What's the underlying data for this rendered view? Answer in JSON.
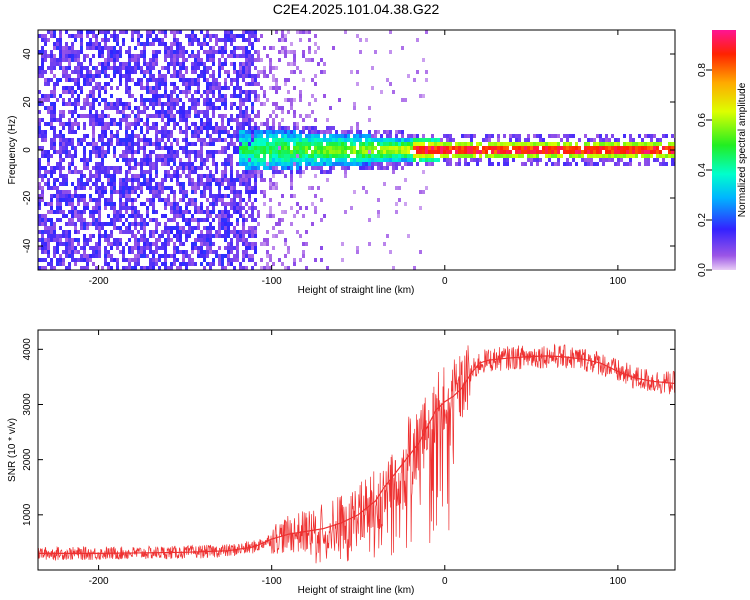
{
  "title": "C2E4.2025.101.04.38.G22",
  "colors": {
    "snr_line": "#ee3030",
    "low": "#8a2be2",
    "background": "#ffffff"
  },
  "chart_data": [
    {
      "type": "heatmap",
      "panel": "top",
      "title": "C2E4.2025.101.04.38.G22",
      "xlabel": "Height of straight line (km)",
      "ylabel": "Frequency (Hz)",
      "xlim": [
        -235,
        133
      ],
      "ylim": [
        -50,
        50
      ],
      "xticks": [
        -200,
        -100,
        0,
        100
      ],
      "yticks": [
        -40,
        -20,
        0,
        20,
        40
      ],
      "colorbar": {
        "label": "Normalized spectral amplitude",
        "range": [
          0,
          0.96
        ],
        "ticks": [
          0.0,
          0.2,
          0.4,
          0.6,
          0.8
        ]
      },
      "description_features": {
        "noise_region_x": [
          -235,
          -110
        ],
        "signal_onset_x": -120,
        "signal_center_freq_hz": 0,
        "peak_amplitude_region_x": [
          -20,
          133
        ]
      }
    },
    {
      "type": "line",
      "panel": "bottom",
      "xlabel": "Height of straight line (km)",
      "ylabel": "SNR (10 * v/v)",
      "xlim": [
        -235,
        133
      ],
      "ylim": [
        0,
        4350
      ],
      "xticks": [
        -200,
        -100,
        0,
        100
      ],
      "yticks": [
        1000,
        2000,
        3000,
        4000
      ],
      "series": [
        {
          "name": "SNR",
          "x": [
            -235,
            -200,
            -150,
            -125,
            -110,
            -100,
            -90,
            -80,
            -70,
            -60,
            -50,
            -40,
            -35,
            -30,
            -25,
            -20,
            -15,
            -10,
            -5,
            0,
            5,
            10,
            15,
            20,
            25,
            30,
            40,
            50,
            60,
            70,
            80,
            90,
            100,
            110,
            120,
            133
          ],
          "values": [
            300,
            300,
            320,
            350,
            420,
            560,
            650,
            700,
            750,
            850,
            1000,
            1250,
            1500,
            1700,
            1900,
            2100,
            2300,
            2600,
            2900,
            3050,
            3150,
            3300,
            3550,
            3750,
            3800,
            3820,
            3850,
            3870,
            3880,
            3860,
            3820,
            3750,
            3600,
            3480,
            3420,
            3380
          ]
        }
      ]
    }
  ]
}
